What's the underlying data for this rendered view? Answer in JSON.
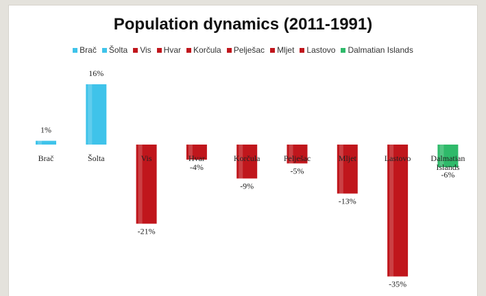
{
  "chart_data": {
    "type": "bar",
    "title": "Population dynamics (2011-1991)",
    "categories": [
      "Brač",
      "Šolta",
      "Vis",
      "Hvar",
      "Korčula",
      "Pelješac",
      "Mljet",
      "Lastovo",
      "Dalmatian Islands"
    ],
    "values": [
      1,
      16,
      -21,
      -4,
      -9,
      -5,
      -13,
      -35,
      -6
    ],
    "data_labels": [
      "1%",
      "16%",
      "-21%",
      "-4%",
      "-9%",
      "-5%",
      "-13%",
      "-35%",
      "-6%"
    ],
    "legend": [
      "Brač",
      "Šolta",
      "Vis",
      "Hvar",
      "Korčula",
      "Pelješac",
      "Mljet",
      "Lastovo",
      "Dalmatian Islands"
    ],
    "colors": [
      "#3fc3ea",
      "#3fc3ea",
      "#c0161c",
      "#c0161c",
      "#c0161c",
      "#c0161c",
      "#c0161c",
      "#c0161c",
      "#2fba6a"
    ],
    "legend_position": "top",
    "ylim": [
      -35,
      16
    ],
    "grid": false,
    "xlabel": "",
    "ylabel": ""
  }
}
